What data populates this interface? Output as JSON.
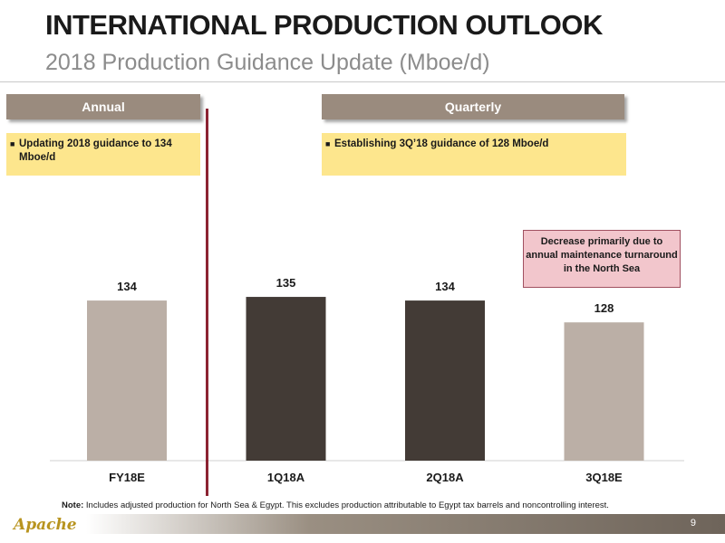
{
  "header": {
    "title": "INTERNATIONAL PRODUCTION OUTLOOK",
    "subtitle": "2018 Production Guidance Update (Mboe/d)"
  },
  "sections": {
    "annual": {
      "label": "Annual",
      "bullet": "Updating 2018 guidance to 134 Mboe/d"
    },
    "quarterly": {
      "label": "Quarterly",
      "bullet": "Establishing 3Q’18 guidance of 128 Mboe/d"
    }
  },
  "callout": {
    "text": "Decrease primarily due to annual maintenance turnaround in the North Sea"
  },
  "footnote": {
    "prefix": "Note:",
    "text": "Includes adjusted production for North Sea & Egypt. This excludes production attributable to Egypt tax barrels and noncontrolling interest."
  },
  "footer": {
    "logo": "Apache",
    "page_number": "9"
  },
  "colors": {
    "guidance_bar": "#bbafa6",
    "actual_bar": "#433b36",
    "section_header": "#9a8b7e",
    "note_box": "#fde68d",
    "callout_box": "#f2c6cc",
    "divider": "#8c2332"
  },
  "chart_data": {
    "type": "bar",
    "categories": [
      "FY18E",
      "1Q18A",
      "2Q18A",
      "3Q18E"
    ],
    "values": [
      134,
      135,
      134,
      128
    ],
    "value_labels": [
      "134",
      "135",
      "134",
      "128"
    ],
    "bar_colors": [
      "#bbafa6",
      "#433b36",
      "#433b36",
      "#bbafa6"
    ],
    "ylim": [
      90,
      138
    ],
    "grid": false,
    "xlabel": "",
    "ylabel": ""
  }
}
